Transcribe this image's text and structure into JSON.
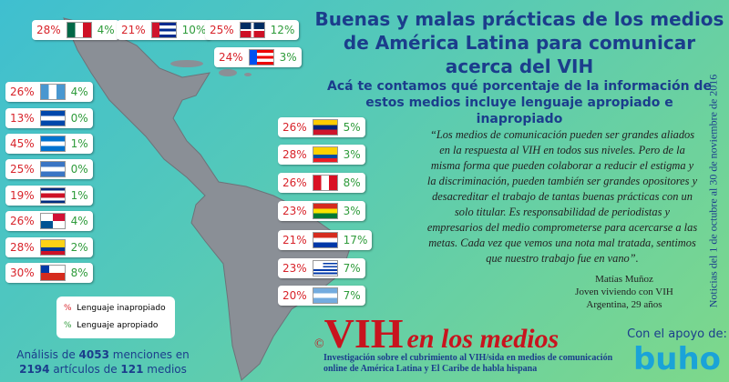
{
  "title": [
    "Buenas y malas prácticas de los medios",
    "de América Latina para comunicar",
    "acerca del VIH"
  ],
  "subtitle": [
    "Acá te contamos qué porcentaje de la información de",
    "estos medios incluye lenguaje apropiado e inapropiado"
  ],
  "countries": [
    {
      "bad": "28%",
      "good": "4%"
    },
    {
      "bad": "21%",
      "good": "10%"
    },
    {
      "bad": "25%",
      "good": "12%"
    },
    {
      "bad": "24%",
      "good": "3%"
    },
    {
      "bad": "26%",
      "good": "4%"
    },
    {
      "bad": "13%",
      "good": "0%"
    },
    {
      "bad": "45%",
      "good": "1%"
    },
    {
      "bad": "25%",
      "good": "0%"
    },
    {
      "bad": "19%",
      "good": "1%"
    },
    {
      "bad": "26%",
      "good": "4%"
    },
    {
      "bad": "28%",
      "good": "2%"
    },
    {
      "bad": "30%",
      "good": "8%"
    },
    {
      "bad": "26%",
      "good": "5%"
    },
    {
      "bad": "28%",
      "good": "3%"
    },
    {
      "bad": "26%",
      "good": "8%"
    },
    {
      "bad": "23%",
      "good": "3%"
    },
    {
      "bad": "21%",
      "good": "17%"
    },
    {
      "bad": "23%",
      "good": "7%"
    },
    {
      "bad": "20%",
      "good": "7%"
    }
  ],
  "legend": [
    {
      "symbol": "%",
      "label": "Lenguaje inapropiado"
    },
    {
      "symbol": "%",
      "label": "Lenguaje apropiado"
    }
  ],
  "analysis": {
    "line1": [
      "Análisis de ",
      "4053",
      " menciones en"
    ],
    "line2": [
      "2194",
      " artículos de ",
      "121",
      " medios"
    ]
  },
  "quote": "“Los medios de comunicación pueden ser grandes aliados en la respuesta al VIH en todos sus niveles. Pero de la misma forma que pueden colaborar a reducir el estigma y la discriminación, pueden también ser grandes opositores y desacreditar el trabajo de tantas buenas prácticas con un solo titular. Es responsabilidad de periodistas y empresarios del medio comprometerse para acercarse a las metas. Cada vez que vemos una nota mal tratada, sentimos que nuestro trabajo fue en vano”.",
  "attribution": [
    "Matías Muñoz",
    "Joven viviendo con VIH",
    "Argentina, 29 años"
  ],
  "side_note": "Noticias del 1 de octubre al 30 de noviembre de 2016",
  "logo": {
    "copyright": "©",
    "vih": "VIH",
    "rest": "en los medios",
    "description": "Investigación sobre el cubrimiento al VIH/sida en medios de comunicación online de América Latina y El Caribe de habla hispana"
  },
  "sponsor": {
    "label": "Con el apoyo de:",
    "name": "buho"
  }
}
